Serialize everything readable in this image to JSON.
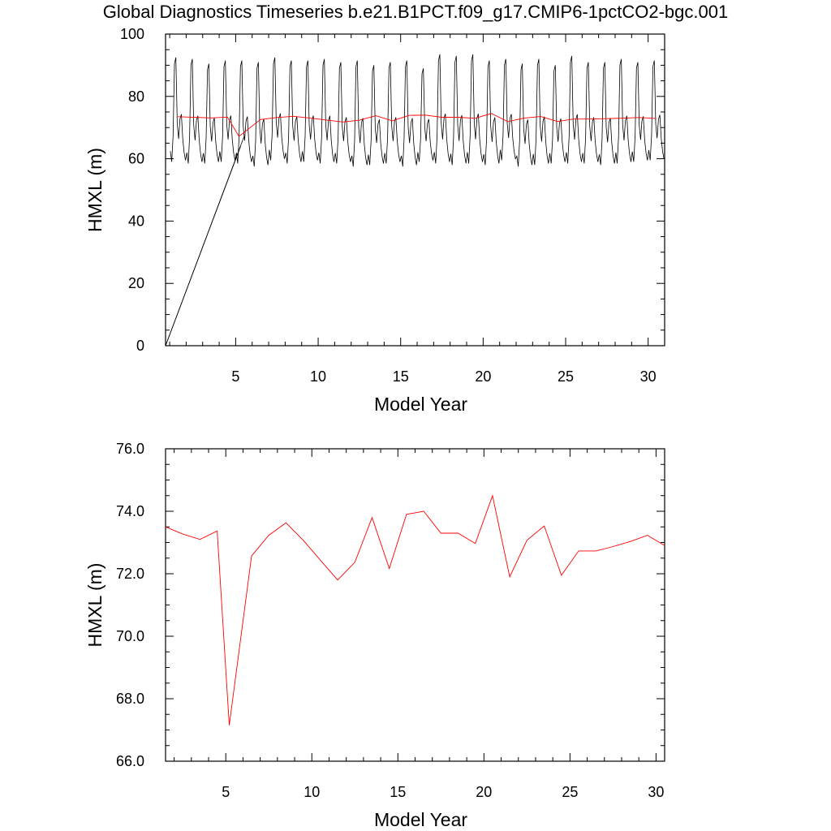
{
  "page": {
    "title": "Global Diagnostics Timeseries b.e21.B1PCT.f09_g17.CMIP6-1pctCO2-bgc.001"
  },
  "colors": {
    "monthly_line": "#000000",
    "annual_line": "#ff0000",
    "axis": "#000000",
    "background": "#ffffff"
  },
  "chart_data": [
    {
      "type": "line",
      "xlabel": "Model Year",
      "ylabel": "HMXL (m)",
      "xlim": [
        0.75,
        31.0
      ],
      "ylim": [
        0,
        100
      ],
      "xticks": [
        5,
        10,
        15,
        20,
        25,
        30
      ],
      "xtick_labels": [
        "5",
        "10",
        "15",
        "20",
        "25",
        "30"
      ],
      "yticks": [
        0,
        20,
        40,
        60,
        80,
        100
      ],
      "ytick_labels": [
        "0",
        "20",
        "40",
        "60",
        "80",
        "100"
      ],
      "grid": false,
      "series": [
        {
          "color": "#000000",
          "resolution": "monthly",
          "seasonal_cycle_m": [
            62.0,
            58.5,
            67.0,
            90.5,
            92.5,
            71.0,
            66.0,
            72.5,
            74.0,
            66.0,
            61.5,
            59.0
          ],
          "peak_values_m": [
            92.5,
            92.0,
            90.5,
            91.5,
            91.5,
            91.0,
            92.5,
            91.5,
            91.5,
            92.0,
            91.0,
            91.5,
            90.0,
            91.0,
            91.5,
            89.0,
            93.5,
            93.0,
            93.5,
            91.5,
            92.0,
            90.5,
            92.0,
            90.0,
            93.0,
            91.0,
            91.0,
            92.0,
            91.0,
            91.5
          ],
          "trough_values_m": [
            59.0,
            58.5,
            58.5,
            59.0,
            58.5,
            57.5,
            59.5,
            58.5,
            59.0,
            58.5,
            58.5,
            57.5,
            58.0,
            58.5,
            57.5,
            59.0,
            58.5,
            58.0,
            58.5,
            58.0,
            59.5,
            57.5,
            58.0,
            58.5,
            58.5,
            58.5,
            58.0,
            58.5,
            59.0,
            59.5
          ],
          "segment_from_origin": [
            [
              0.75,
              0
            ],
            [
              5.5,
              67.0
            ]
          ],
          "x_range": [
            1.0,
            31.0
          ]
        },
        {
          "color": "#ff0000",
          "resolution": "annual",
          "x": [
            1.5,
            2.5,
            3.5,
            4.5,
            5.2,
            6.5,
            7.5,
            8.5,
            9.5,
            10.5,
            11.5,
            12.5,
            13.5,
            14.5,
            15.5,
            16.5,
            17.5,
            18.5,
            19.5,
            20.5,
            21.5,
            22.5,
            23.5,
            24.5,
            25.5,
            26.5,
            27.5,
            28.5,
            29.5,
            30.5
          ],
          "values": [
            73.5,
            73.27,
            73.1,
            73.37,
            67.15,
            72.57,
            73.23,
            73.63,
            73.07,
            72.43,
            71.8,
            72.37,
            73.8,
            72.17,
            73.9,
            74.0,
            73.3,
            73.3,
            72.97,
            74.5,
            71.9,
            73.07,
            73.53,
            71.95,
            72.73,
            72.73,
            72.87,
            73.03,
            73.23,
            72.9
          ]
        }
      ]
    },
    {
      "type": "line",
      "xlabel": "Model Year",
      "ylabel": "HMXL (m)",
      "xlim": [
        1.5,
        30.5
      ],
      "ylim": [
        66.0,
        76.0
      ],
      "xticks": [
        5,
        10,
        15,
        20,
        25,
        30
      ],
      "xtick_labels": [
        "5",
        "10",
        "15",
        "20",
        "25",
        "30"
      ],
      "yticks": [
        66,
        68,
        70,
        72,
        74,
        76
      ],
      "ytick_labels": [
        "66.0",
        "68.0",
        "70.0",
        "72.0",
        "74.0",
        "76.0"
      ],
      "grid": false,
      "series": [
        {
          "color": "#ff0000",
          "resolution": "annual",
          "x": [
            1.5,
            2.5,
            3.5,
            4.5,
            5.2,
            6.5,
            7.5,
            8.5,
            9.5,
            10.5,
            11.5,
            12.5,
            13.5,
            14.5,
            15.5,
            16.5,
            17.5,
            18.5,
            19.5,
            20.5,
            21.5,
            22.5,
            23.5,
            24.5,
            25.5,
            26.5,
            27.5,
            28.5,
            29.5,
            30.5
          ],
          "values": [
            73.5,
            73.27,
            73.1,
            73.37,
            67.15,
            72.57,
            73.23,
            73.63,
            73.07,
            72.43,
            71.8,
            72.37,
            73.8,
            72.17,
            73.9,
            74.0,
            73.3,
            73.3,
            72.97,
            74.5,
            71.9,
            73.07,
            73.53,
            71.95,
            72.73,
            72.73,
            72.87,
            73.03,
            73.23,
            72.9
          ]
        }
      ]
    }
  ]
}
